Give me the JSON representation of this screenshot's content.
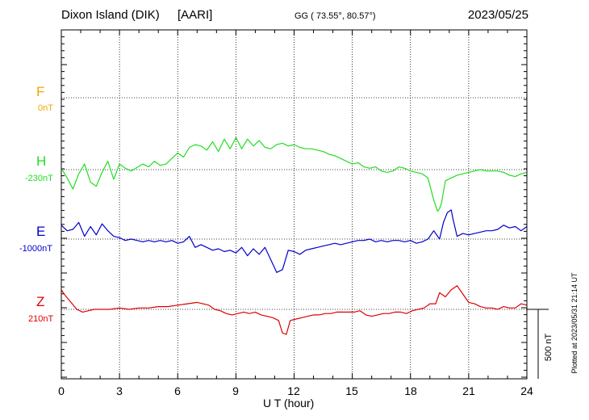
{
  "header": {
    "station": "Dixon Island (DIK)",
    "institute": "[AARI]",
    "coords": "GG ( 73.55°,  80.57°)",
    "date": "2023/05/25"
  },
  "components": [
    {
      "id": "F",
      "name": "F",
      "baseline": "0nT",
      "color": "#f0a800"
    },
    {
      "id": "H",
      "name": "H",
      "baseline": "-230nT",
      "color": "#22dd22"
    },
    {
      "id": "E",
      "name": "E",
      "baseline": "-1000nT",
      "color": "#0000cc"
    },
    {
      "id": "Z",
      "name": "Z",
      "baseline": "210nT",
      "color": "#dd0000"
    }
  ],
  "xaxis": {
    "ticks": [
      "0",
      "3",
      "6",
      "9",
      "12",
      "15",
      "18",
      "21",
      "24"
    ],
    "label": "U T (hour)"
  },
  "scale_bar": "500 nT",
  "plotted_note": "Plotted at 2023/05/31 21:14 UT",
  "chart_data": {
    "type": "line",
    "xlim": [
      0,
      24
    ],
    "x_unit": "hour UT",
    "grid": true,
    "series": [
      {
        "name": "H",
        "color": "#22dd22",
        "x": [
          0,
          0.3,
          0.6,
          0.9,
          1.2,
          1.5,
          1.8,
          2.1,
          2.4,
          2.7,
          3.0,
          3.3,
          3.6,
          3.9,
          4.2,
          4.5,
          4.8,
          5.1,
          5.4,
          5.7,
          6.0,
          6.3,
          6.6,
          6.9,
          7.2,
          7.5,
          7.8,
          8.1,
          8.4,
          8.7,
          9.0,
          9.3,
          9.6,
          9.9,
          10.2,
          10.5,
          10.8,
          11.1,
          11.4,
          11.7,
          12.0,
          12.3,
          12.6,
          12.9,
          13.2,
          13.5,
          13.8,
          14.1,
          14.4,
          14.7,
          15.0,
          15.3,
          15.6,
          15.9,
          16.2,
          16.5,
          16.8,
          17.1,
          17.4,
          17.7,
          18.0,
          18.3,
          18.6,
          18.9,
          19.2,
          19.4,
          19.5,
          19.6,
          19.8,
          20.1,
          20.4,
          20.7,
          21.0,
          21.3,
          21.6,
          21.9,
          22.2,
          22.5,
          22.8,
          23.1,
          23.4,
          23.7,
          24.0
        ],
        "y": [
          10,
          -60,
          -140,
          -30,
          40,
          -90,
          -120,
          -20,
          60,
          -70,
          40,
          10,
          -10,
          15,
          40,
          20,
          60,
          30,
          40,
          80,
          120,
          90,
          160,
          180,
          170,
          140,
          200,
          130,
          220,
          150,
          230,
          150,
          220,
          170,
          210,
          160,
          150,
          180,
          190,
          170,
          180,
          160,
          150,
          150,
          140,
          130,
          110,
          100,
          80,
          60,
          40,
          50,
          20,
          10,
          20,
          -10,
          -20,
          -10,
          20,
          10,
          -10,
          -20,
          -30,
          -60,
          -220,
          -300,
          -280,
          -240,
          -80,
          -60,
          -40,
          -30,
          -20,
          -10,
          0,
          -10,
          -10,
          -10,
          -20,
          -40,
          -50,
          -30,
          -20
        ]
      },
      {
        "name": "E",
        "color": "#0000cc",
        "x": [
          0,
          0.3,
          0.6,
          0.9,
          1.2,
          1.5,
          1.8,
          2.1,
          2.4,
          2.7,
          3.0,
          3.3,
          3.6,
          3.9,
          4.2,
          4.5,
          4.8,
          5.1,
          5.4,
          5.7,
          6.0,
          6.3,
          6.6,
          6.9,
          7.2,
          7.5,
          7.8,
          8.1,
          8.4,
          8.7,
          9.0,
          9.3,
          9.6,
          9.9,
          10.2,
          10.5,
          10.8,
          11.1,
          11.4,
          11.7,
          12.0,
          12.3,
          12.6,
          12.9,
          13.2,
          13.5,
          13.8,
          14.1,
          14.4,
          14.7,
          15.0,
          15.3,
          15.6,
          15.9,
          16.2,
          16.5,
          16.8,
          17.1,
          17.4,
          17.7,
          18.0,
          18.3,
          18.6,
          18.9,
          19.2,
          19.5,
          19.7,
          19.9,
          20.1,
          20.2,
          20.4,
          20.7,
          21.0,
          21.3,
          21.6,
          21.9,
          22.2,
          22.5,
          22.8,
          23.1,
          23.4,
          23.7,
          24.0
        ],
        "y": [
          100,
          60,
          70,
          120,
          20,
          90,
          30,
          110,
          60,
          20,
          10,
          -10,
          0,
          -10,
          -20,
          -10,
          -20,
          -10,
          -20,
          -10,
          -30,
          -20,
          20,
          -60,
          -40,
          -60,
          -80,
          -70,
          -90,
          -80,
          -100,
          -60,
          -120,
          -70,
          -110,
          -60,
          -150,
          -240,
          -220,
          -80,
          -90,
          -110,
          -80,
          -70,
          -60,
          -50,
          -40,
          -30,
          -40,
          -30,
          -20,
          -10,
          -10,
          0,
          -20,
          -10,
          -20,
          -10,
          -10,
          -20,
          -10,
          -30,
          -20,
          0,
          60,
          0,
          120,
          190,
          210,
          140,
          20,
          40,
          30,
          40,
          50,
          60,
          60,
          70,
          100,
          80,
          90,
          60,
          90
        ]
      },
      {
        "name": "Z",
        "color": "#dd0000",
        "x": [
          0,
          0.2,
          0.5,
          0.8,
          1.1,
          1.4,
          1.7,
          2.0,
          2.5,
          3.0,
          3.5,
          4.0,
          4.5,
          5.0,
          5.5,
          6.0,
          6.5,
          7.0,
          7.3,
          7.6,
          7.9,
          8.2,
          8.5,
          8.8,
          9.1,
          9.4,
          9.7,
          10.0,
          10.3,
          10.6,
          10.9,
          11.2,
          11.4,
          11.6,
          11.8,
          12.1,
          12.4,
          12.7,
          13.0,
          13.3,
          13.6,
          13.9,
          14.2,
          14.5,
          14.8,
          15.1,
          15.4,
          15.7,
          16.0,
          16.3,
          16.6,
          16.9,
          17.2,
          17.5,
          17.8,
          18.1,
          18.4,
          18.7,
          19.0,
          19.3,
          19.5,
          19.8,
          20.1,
          20.4,
          20.7,
          21.0,
          21.3,
          21.6,
          21.9,
          22.2,
          22.5,
          22.8,
          23.1,
          23.4,
          23.7,
          24.0
        ],
        "y": [
          140,
          100,
          50,
          0,
          -20,
          -10,
          0,
          0,
          0,
          10,
          0,
          10,
          10,
          20,
          20,
          30,
          40,
          50,
          40,
          30,
          0,
          -10,
          -30,
          -40,
          -30,
          -20,
          -30,
          -20,
          -40,
          -50,
          -60,
          -80,
          -170,
          -180,
          -80,
          -70,
          -60,
          -50,
          -40,
          -40,
          -30,
          -30,
          -20,
          -20,
          -20,
          -20,
          -10,
          -40,
          -50,
          -40,
          -30,
          -30,
          -20,
          -20,
          -30,
          -10,
          0,
          10,
          40,
          40,
          120,
          90,
          140,
          170,
          110,
          50,
          40,
          20,
          10,
          10,
          0,
          20,
          10,
          10,
          40,
          30
        ]
      }
    ]
  }
}
